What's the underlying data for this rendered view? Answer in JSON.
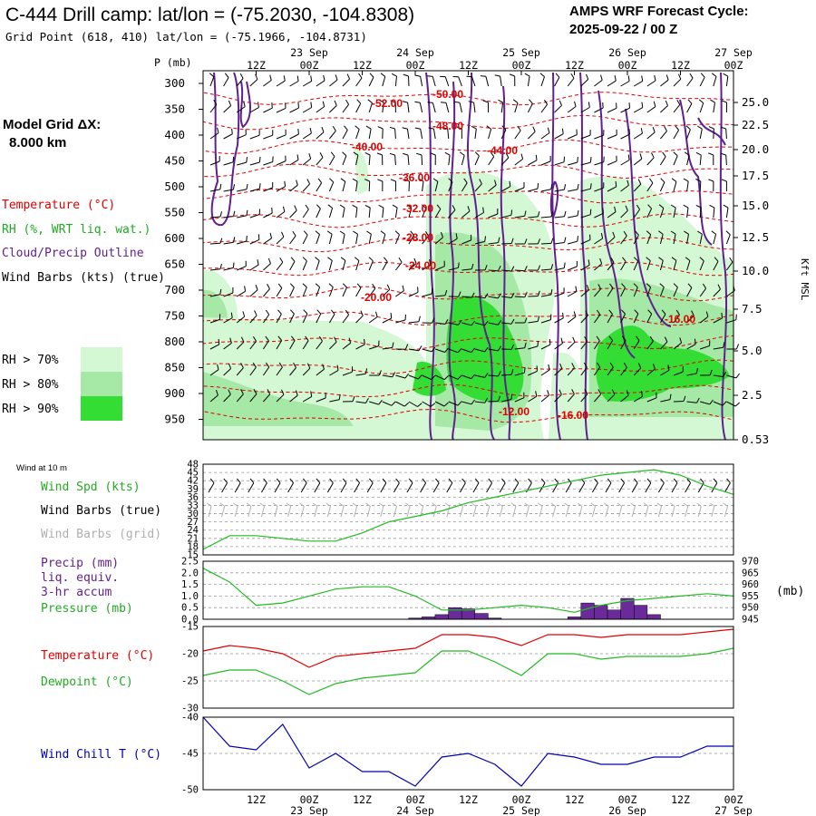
{
  "header": {
    "title": "C-444 Drill camp:  lat/lon = (-75.2030, -104.8308)",
    "subtitle": "Grid Point (618, 410) lat/lon = (-75.1966, -104.8731)",
    "cycle_title": "AMPS WRF Forecast Cycle:",
    "cycle_value": "2025-09-22 / 00  Z"
  },
  "left_legend": {
    "model_grid": "Model Grid ΔX:",
    "grid_value": "8.000 km",
    "temperature": "Temperature (°C)",
    "rh": "RH (%, WRT liq. wat.)",
    "cloud": "Cloud/Precip Outline",
    "wind": "Wind Barbs (kts) (true)",
    "rh_levels": [
      "RH > 70%",
      "RH > 80%",
      "RH > 90%"
    ]
  },
  "colors": {
    "rh70": "#d4f7d4",
    "rh80": "#a6e8a6",
    "rh90": "#33dd33",
    "temp": "#e00000",
    "cloud": "#602090",
    "green": "#22bb22",
    "blue": "#0000b0",
    "precip": "#6a2a9a",
    "grey": "#b0b0b0"
  },
  "time_axis": {
    "hours": [
      "12Z",
      "00Z",
      "12Z",
      "00Z",
      "12Z",
      "00Z",
      "12Z",
      "00Z",
      "12Z",
      "00Z"
    ],
    "dates": [
      "23 Sep",
      "24 Sep",
      "25 Sep",
      "26 Sep",
      "27 Sep"
    ]
  },
  "chart_data": [
    {
      "type": "heatmap",
      "name": "vertical cross-section",
      "y_label": "P (mb)",
      "pressure_ticks": [
        "300",
        "350",
        "400",
        "450",
        "500",
        "550",
        "600",
        "650",
        "700",
        "750",
        "800",
        "850",
        "900",
        "950"
      ],
      "right_label": "Kft MSL",
      "height_ticks": [
        "25.0",
        "22.5",
        "20.0",
        "17.5",
        "15.0",
        "12.5",
        "10.0",
        "7.5",
        "5.0",
        "2.5",
        "0.53"
      ],
      "temperature_contours": [
        "-50.00",
        "-52.00",
        "-48.00",
        "-40.00",
        "-44.00",
        "-36.00",
        "-32.00",
        "-28.00",
        "-24.00",
        "-20.00",
        "-16.00",
        "-12.00",
        "-16.00"
      ]
    },
    {
      "type": "line",
      "name": "wind at 10 m",
      "caption": "Wind at 10 m",
      "labels": [
        "Wind Spd (kts)",
        "Wind Barbs (true)",
        "Wind Barbs (grid)"
      ],
      "y_ticks": [
        "48",
        "45",
        "42",
        "39",
        "36",
        "33",
        "30",
        "27",
        "24",
        "21",
        "18",
        "15"
      ],
      "ylim": [
        15,
        48
      ],
      "x": [
        0,
        6,
        12,
        18,
        24,
        30,
        36,
        42,
        48,
        54,
        60,
        66,
        72,
        78,
        84,
        90,
        96,
        102,
        108,
        114,
        120
      ],
      "wind_speed": [
        17,
        22,
        22,
        21,
        20,
        20,
        23,
        27,
        29,
        31,
        34,
        36,
        38,
        40,
        42,
        44,
        45,
        46,
        44,
        40,
        37
      ]
    },
    {
      "type": "bar",
      "name": "precip and pressure",
      "labels": [
        "Precip (mm)",
        "liq. equiv.",
        "3-hr accum",
        "Pressure (mb)"
      ],
      "unit_right": "(mb)",
      "left_ticks": [
        "2.5",
        "2.0",
        "1.5",
        "1.0",
        "0.5",
        "0.0"
      ],
      "right_ticks": [
        "970",
        "965",
        "960",
        "955",
        "950",
        "945"
      ],
      "precip_ylim": [
        0,
        2.5
      ],
      "pressure_ylim": [
        945,
        970
      ],
      "precip_x": [
        48,
        51,
        54,
        57,
        60,
        63,
        66,
        69,
        72,
        75,
        78,
        81,
        84,
        87,
        90,
        93,
        96,
        99,
        102
      ],
      "precip": [
        0.05,
        0.1,
        0.2,
        0.5,
        0.45,
        0.25,
        0.05,
        0.0,
        0.0,
        0.0,
        0.0,
        0.0,
        0.1,
        0.7,
        0.6,
        0.4,
        0.9,
        0.6,
        0.2
      ],
      "pressure_x": [
        0,
        6,
        12,
        18,
        24,
        30,
        36,
        42,
        48,
        54,
        60,
        66,
        72,
        78,
        84,
        90,
        96,
        102,
        108,
        114,
        120
      ],
      "pressure": [
        967,
        961,
        951,
        952,
        955,
        958,
        959,
        959,
        955,
        949,
        949,
        950,
        951,
        950,
        948,
        951,
        953,
        954,
        955,
        956,
        955
      ]
    },
    {
      "type": "line",
      "name": "temperature and dewpoint",
      "labels": [
        "Temperature (°C)",
        "Dewpoint (°C)"
      ],
      "y_ticks": [
        "-15",
        "-20",
        "-25",
        "-30"
      ],
      "ylim": [
        -30,
        -15
      ],
      "x": [
        0,
        6,
        12,
        18,
        24,
        30,
        36,
        42,
        48,
        54,
        60,
        66,
        72,
        78,
        84,
        90,
        96,
        102,
        108,
        114,
        120
      ],
      "temperature": [
        -19.5,
        -18.5,
        -19,
        -20,
        -22.5,
        -20.5,
        -20,
        -19.5,
        -19,
        -16.5,
        -16.5,
        -17,
        -18.5,
        -16.5,
        -16.5,
        -17,
        -16.5,
        -16.5,
        -16.5,
        -16,
        -15.5
      ],
      "dewpoint": [
        -24,
        -23,
        -23,
        -25,
        -27.5,
        -25.5,
        -24.5,
        -24,
        -23.5,
        -19.5,
        -19.5,
        -21.5,
        -24,
        -20,
        -20,
        -21,
        -20.5,
        -20.5,
        -20.5,
        -20,
        -19
      ]
    },
    {
      "type": "line",
      "name": "wind chill",
      "labels": [
        "Wind Chill T (°C)"
      ],
      "y_ticks": [
        "-40",
        "-45",
        "-50"
      ],
      "ylim": [
        -50,
        -40
      ],
      "x": [
        0,
        6,
        12,
        18,
        24,
        30,
        36,
        42,
        48,
        54,
        60,
        66,
        72,
        78,
        84,
        90,
        96,
        102,
        108,
        114,
        120
      ],
      "wind_chill": [
        -40,
        -44,
        -44.5,
        -41,
        -47,
        -45,
        -47.5,
        -47.5,
        -49.5,
        -45.5,
        -45,
        -46.5,
        -49.5,
        -45,
        -45.5,
        -46.5,
        -46.5,
        -45.5,
        -45.5,
        -44,
        -44
      ]
    }
  ]
}
